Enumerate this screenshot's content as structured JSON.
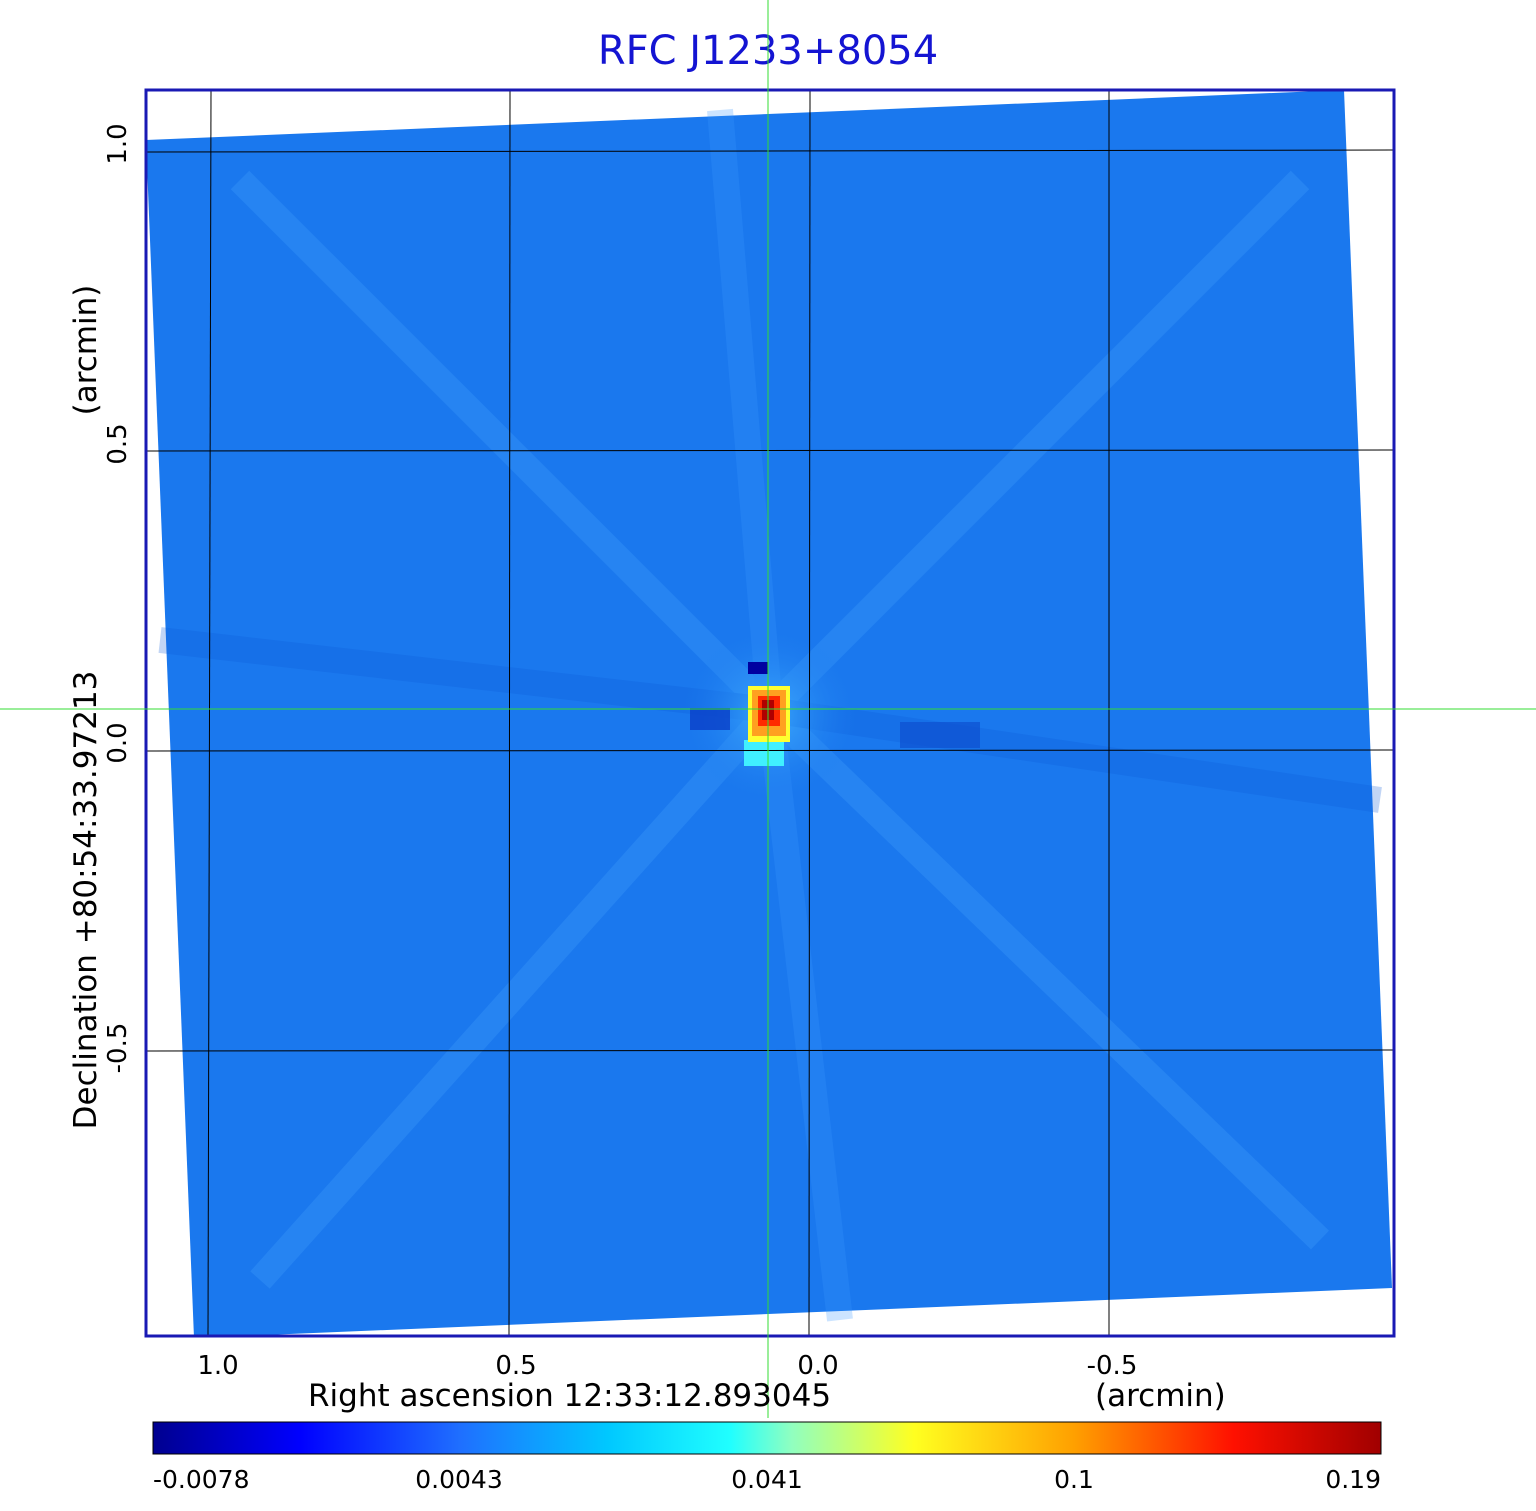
{
  "title": "RFC J1233+8054",
  "x_axis": {
    "label": "Right ascension  12:33:12.893045",
    "unit": "(arcmin)",
    "ticks": [
      "1.0",
      "0.5",
      "0.0",
      "-0.5"
    ]
  },
  "y_axis": {
    "label": "Declination  +80:54:33.97213",
    "unit": "(arcmin)",
    "ticks": [
      "1.0",
      "0.5",
      "0.0",
      "-0.5"
    ]
  },
  "colorbar": {
    "ticks": [
      "-0.0078",
      "0.0043",
      "0.041",
      "0.1",
      "0.19"
    ]
  },
  "colors": {
    "title": "#1414d2",
    "frame": "#1a1ab4",
    "crosshair": "#33dd33",
    "grid": "#000000",
    "background_field": "#1a78ee"
  }
}
